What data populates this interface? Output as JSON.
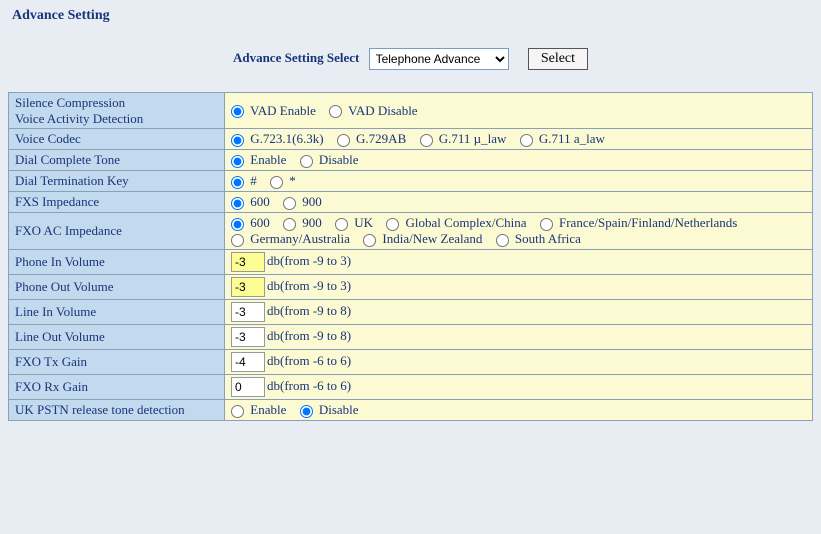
{
  "title": "Advance Setting",
  "selector": {
    "label": "Advance Setting Select",
    "selected": "Telephone Advance",
    "button": "Select"
  },
  "rows": [
    {
      "label_a": "Silence Compression",
      "label_b": "Voice Activity Detection",
      "type": "radio",
      "name": "vad",
      "options": [
        "VAD Enable",
        "VAD Disable"
      ],
      "sel": 0
    },
    {
      "label_a": "Voice Codec",
      "type": "radio",
      "name": "codec",
      "options": [
        "G.723.1(6.3k)",
        "G.729AB",
        "G.711 µ_law",
        "G.711 a_law"
      ],
      "sel": 0
    },
    {
      "label_a": "Dial Complete Tone",
      "type": "radio",
      "name": "dct",
      "options": [
        "Enable",
        "Disable"
      ],
      "sel": 0
    },
    {
      "label_a": "Dial Termination Key",
      "type": "radio",
      "name": "dtk",
      "options": [
        "#",
        "*"
      ],
      "sel": 0
    },
    {
      "label_a": "FXS Impedance",
      "type": "radio",
      "name": "fxs",
      "options": [
        "600",
        "900"
      ],
      "sel": 0
    },
    {
      "label_a": "FXO AC Impedance",
      "type": "radio",
      "name": "fxo",
      "options": [
        "600",
        "900",
        "UK",
        "Global Complex/China",
        "France/Spain/Finland/Netherlands",
        "Germany/Australia",
        "India/New Zealand",
        "South Africa"
      ],
      "sel": 0
    },
    {
      "label_a": "Phone In Volume",
      "type": "num",
      "value": "-3",
      "hint": "db(from -9 to 3)",
      "hl": true
    },
    {
      "label_a": "Phone Out Volume",
      "type": "num",
      "value": "-3",
      "hint": "db(from -9 to 3)",
      "hl": true
    },
    {
      "label_a": "Line In Volume",
      "type": "num",
      "value": "-3",
      "hint": "db(from -9 to 8)",
      "hl": false
    },
    {
      "label_a": "Line Out Volume",
      "type": "num",
      "value": "-3",
      "hint": "db(from -9 to 8)",
      "hl": false
    },
    {
      "label_a": "FXO Tx Gain",
      "type": "num",
      "value": "-4",
      "hint": "db(from -6 to 6)",
      "hl": false
    },
    {
      "label_a": "FXO Rx Gain",
      "type": "num",
      "value": "0",
      "hint": "db(from -6 to 6)",
      "hl": false
    },
    {
      "label_a": "UK PSTN release tone detection",
      "type": "radio",
      "name": "ukpstn",
      "options": [
        "Enable",
        "Disable"
      ],
      "sel": 1
    }
  ]
}
